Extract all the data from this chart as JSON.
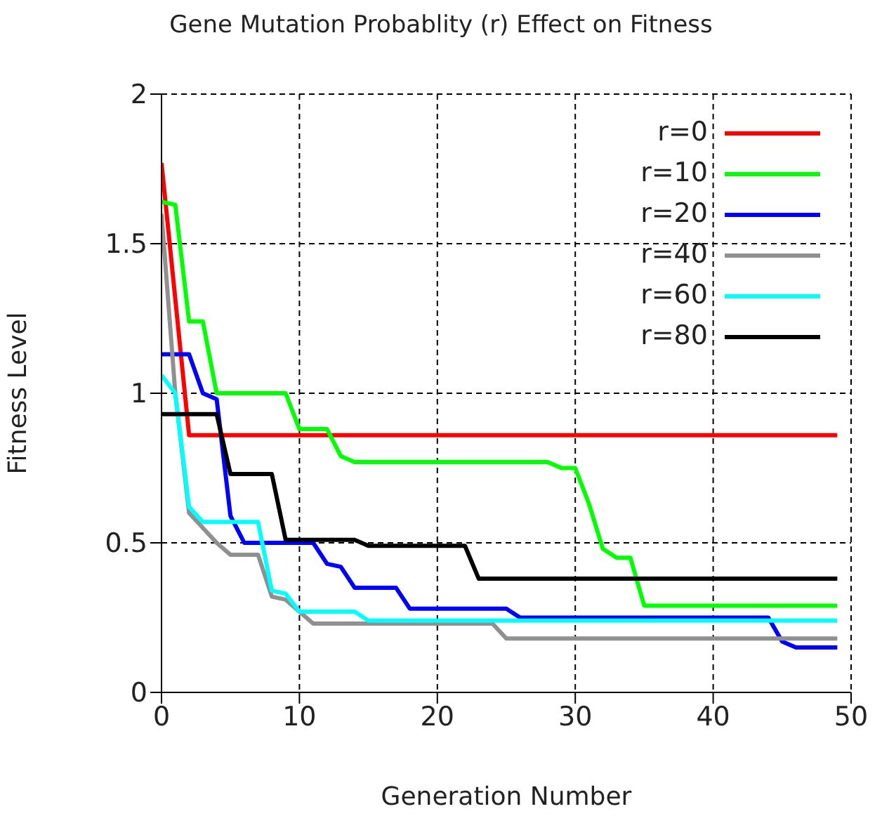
{
  "chart_data": {
    "type": "line",
    "title": "Gene Mutation Probablity (r) Effect on Fitness",
    "xlabel": "Generation Number",
    "ylabel": "Fitness Level",
    "xlim": [
      0,
      50
    ],
    "xticks": [
      0,
      10,
      20,
      30,
      40,
      50
    ],
    "ylim": [
      0,
      2
    ],
    "yticks": [
      0,
      0.5,
      1,
      1.5,
      2
    ],
    "grid": true,
    "legend": "top right",
    "marker": "none",
    "line_style": "solid",
    "series": [
      {
        "name": "r=0",
        "color": "#ff0000",
        "x": [
          0,
          2,
          49
        ],
        "values": [
          1.77,
          0.86,
          0.86
        ]
      },
      {
        "name": "r=10",
        "color": "#00ff00",
        "x": [
          0,
          1,
          2,
          3,
          4,
          9,
          10,
          12,
          13,
          14,
          28,
          29,
          30,
          31,
          32,
          33,
          34,
          35,
          49
        ],
        "values": [
          1.64,
          1.63,
          1.24,
          1.24,
          1.0,
          1.0,
          0.88,
          0.88,
          0.79,
          0.77,
          0.77,
          0.75,
          0.75,
          0.63,
          0.48,
          0.45,
          0.45,
          0.29,
          0.29
        ]
      },
      {
        "name": "r=20",
        "color": "#0000ff",
        "x": [
          0,
          2,
          3,
          4,
          5,
          6,
          11,
          12,
          13,
          14,
          17,
          18,
          25,
          26,
          44,
          45,
          46,
          49
        ],
        "values": [
          1.13,
          1.13,
          1.0,
          0.98,
          0.59,
          0.5,
          0.5,
          0.43,
          0.42,
          0.35,
          0.35,
          0.28,
          0.28,
          0.25,
          0.25,
          0.17,
          0.15,
          0.15
        ]
      },
      {
        "name": "r=40",
        "color": "#909090",
        "x": [
          0,
          1,
          2,
          3,
          4,
          5,
          7,
          8,
          9,
          10,
          11,
          24,
          25,
          49
        ],
        "values": [
          1.6,
          1.0,
          0.6,
          0.55,
          0.5,
          0.46,
          0.46,
          0.32,
          0.31,
          0.27,
          0.23,
          0.23,
          0.18,
          0.18
        ]
      },
      {
        "name": "r=60",
        "color": "#00ffff",
        "x": [
          0,
          1,
          2,
          3,
          7,
          8,
          9,
          10,
          14,
          15,
          49
        ],
        "values": [
          1.06,
          1.0,
          0.62,
          0.57,
          0.57,
          0.34,
          0.33,
          0.27,
          0.27,
          0.24,
          0.24
        ]
      },
      {
        "name": "r=80",
        "color": "#000000",
        "x": [
          0,
          4,
          5,
          8,
          9,
          14,
          15,
          22,
          23,
          49
        ],
        "values": [
          0.93,
          0.93,
          0.73,
          0.73,
          0.51,
          0.51,
          0.49,
          0.49,
          0.38,
          0.38
        ]
      }
    ]
  }
}
